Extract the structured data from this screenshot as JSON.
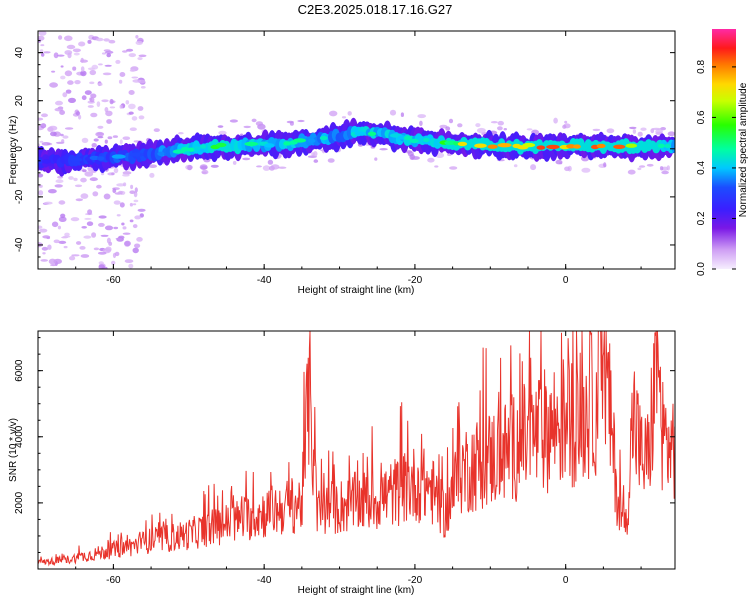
{
  "title": "C2E3.2025.018.17.16.G27",
  "chart_data": [
    {
      "type": "heatmap",
      "xlabel": "Height of straight line (km)",
      "ylabel": "Frequency (Hz)",
      "xlim": [
        -70,
        14.5
      ],
      "ylim": [
        -50,
        49
      ],
      "xticks": [
        -60,
        -40,
        -20,
        0
      ],
      "yticks": [
        -40,
        -20,
        0,
        20,
        40
      ],
      "colorbar": {
        "label": "Normalized spectral amplitude",
        "range": [
          0,
          0.95
        ],
        "ticks": [
          0.0,
          0.2,
          0.4,
          0.6,
          0.8
        ]
      },
      "ridge": {
        "x": [
          -69,
          -66,
          -62,
          -58,
          -55,
          -52,
          -50,
          -47,
          -44,
          -41,
          -38,
          -35,
          -32,
          -29,
          -27,
          -24,
          -21,
          -18,
          -15,
          -12,
          -9,
          -6,
          -3,
          0,
          3,
          6,
          9,
          12,
          14.5
        ],
        "freq_hz": [
          -5,
          -5,
          -4,
          -3,
          -2,
          -1,
          0,
          1,
          1,
          2,
          2,
          3,
          4,
          6,
          7,
          6,
          4,
          3,
          2,
          2,
          1,
          1,
          1,
          1,
          1,
          1,
          1,
          1,
          1
        ],
        "peak_amplitude": [
          0.3,
          0.3,
          0.35,
          0.4,
          0.4,
          0.45,
          0.5,
          0.55,
          0.55,
          0.5,
          0.5,
          0.5,
          0.45,
          0.45,
          0.5,
          0.5,
          0.5,
          0.55,
          0.6,
          0.95,
          0.8,
          0.8,
          0.95,
          0.8,
          0.8,
          0.95,
          0.7,
          0.6,
          0.5
        ]
      },
      "grid": false
    },
    {
      "type": "line",
      "xlabel": "Height of straight line (km)",
      "ylabel": "SNR (10 * v/v)",
      "xlim": [
        -70,
        14.5
      ],
      "ylim": [
        0,
        7200
      ],
      "xticks": [
        -60,
        -40,
        -20,
        0
      ],
      "yticks": [
        2000,
        4000,
        6000
      ],
      "color": "#e8332b",
      "series": [
        {
          "x": [
            -70,
            -66,
            -62,
            -58,
            -55,
            -52,
            -50,
            -47,
            -44,
            -41,
            -38,
            -35,
            -34,
            -33,
            -31,
            -28,
            -25,
            -22,
            -20,
            -18,
            -16,
            -14,
            -12,
            -10,
            -8,
            -6,
            -4,
            -2,
            0,
            2,
            4,
            5,
            6,
            7,
            8,
            9,
            10,
            11,
            12,
            13,
            14,
            14.5
          ],
          "y": [
            200,
            300,
            500,
            700,
            900,
            1000,
            1100,
            1300,
            1500,
            1700,
            1900,
            2100,
            5800,
            1800,
            1900,
            2100,
            2200,
            2500,
            2700,
            2600,
            1700,
            3100,
            3300,
            3500,
            3700,
            4000,
            4200,
            4500,
            4700,
            4800,
            5300,
            7100,
            4500,
            2000,
            1400,
            5000,
            3500,
            3500,
            6500,
            4100,
            3800,
            4000
          ]
        }
      ],
      "grid": false
    }
  ]
}
